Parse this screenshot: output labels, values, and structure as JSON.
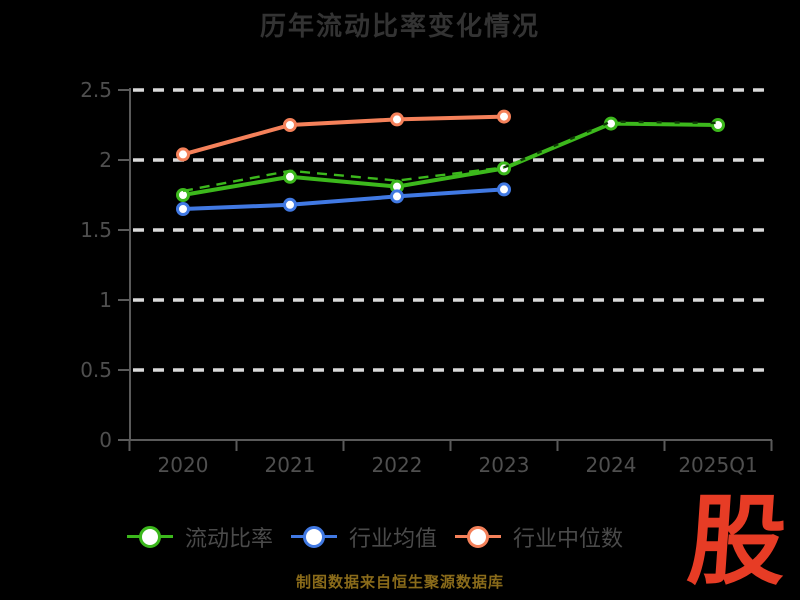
{
  "title": "历年流动比率变化情况",
  "source_note": "制图数据来自恒生聚源数据库",
  "logo_text": "股",
  "colors": {
    "background": "#000000",
    "title": "#333333",
    "axis_label": "#4f4f4f",
    "axis_line": "#5a5a5a",
    "gridline": "#d9d9d9",
    "legend_label": "#4a4a4a",
    "source_note": "#8a6b1a",
    "logo": "#e73c25",
    "marker_fill": "#ffffff",
    "dark_overlay": "#0d3a04"
  },
  "chart_data": {
    "type": "line",
    "title": "历年流动比率变化情况",
    "categories": [
      "2020",
      "2021",
      "2022",
      "2023",
      "2024",
      "2025Q1"
    ],
    "xlabel": "",
    "ylabel": "",
    "ylim": [
      0,
      2.5
    ],
    "y_ticks": [
      0,
      0.5,
      1,
      1.5,
      2,
      2.5
    ],
    "grid": "horizontal-dashed-white",
    "legend_position": "bottom",
    "series": [
      {
        "name": "流动比率",
        "color": "#3cb81c",
        "marker": "white-circle-colored-ring",
        "line": "solid-with-dashed-overlay",
        "values": [
          1.75,
          1.88,
          1.81,
          1.94,
          2.26,
          2.25
        ]
      },
      {
        "name": "行业均值",
        "color": "#4179e3",
        "marker": "white-circle-colored-ring",
        "line": "solid",
        "values": [
          1.65,
          1.68,
          1.74,
          1.79,
          null,
          null
        ]
      },
      {
        "name": "行业中位数",
        "color": "#f5815a",
        "marker": "white-circle-colored-ring",
        "line": "solid",
        "values": [
          2.04,
          2.25,
          2.29,
          2.31,
          null,
          null
        ]
      }
    ]
  }
}
